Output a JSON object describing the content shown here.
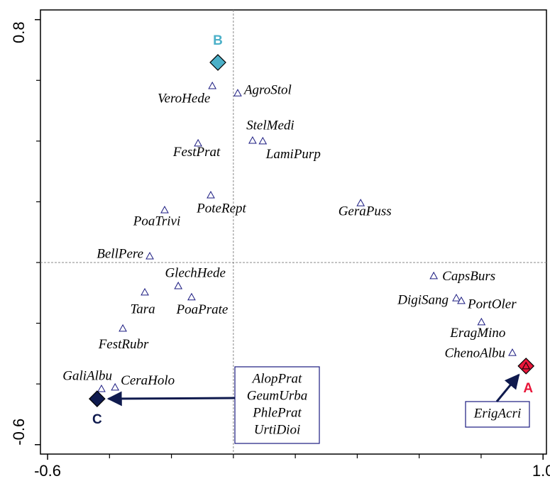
{
  "chart_data": {
    "type": "scatter",
    "xlim": [
      -0.623,
      1.011
    ],
    "ylim": [
      -0.631,
      0.832
    ],
    "xticks": [
      -0.6,
      {
        "value": 1,
        "label": "1.0"
      }
    ],
    "xminor": [
      -0.4,
      -0.2,
      0,
      0.2,
      0.4,
      0.6,
      0.8
    ],
    "yticks": [
      -0.6,
      0.8
    ],
    "yminor": [
      -0.4,
      -0.2,
      0,
      0.2,
      0.4,
      0.6
    ],
    "zero_lines": true,
    "species": {
      "color": "#1a1a80",
      "names": [
        "VeroHede",
        "AgroStol",
        "StelMedi",
        "LamiPurp",
        "FestPrat",
        "PoteRept",
        "PoaTrivi",
        "GeraPuss",
        "BellPere",
        "CapsBurs",
        "DigiSang",
        "PortOler",
        "GlechHede",
        "Tara",
        "PoaPrate",
        "EragMino",
        "FestRubr",
        "ChenoAlbu",
        "CeraHolo",
        "GaliAlbu"
      ],
      "x": [
        -0.068,
        0.014,
        0.062,
        0.095,
        -0.114,
        -0.073,
        -0.222,
        0.411,
        -0.27,
        0.647,
        0.72,
        0.736,
        -0.178,
        -0.286,
        -0.135,
        0.801,
        -0.357,
        0.901,
        -0.382,
        -0.426
      ],
      "y": [
        0.582,
        0.558,
        0.402,
        0.4,
        0.393,
        0.222,
        0.173,
        0.196,
        0.021,
        -0.044,
        -0.117,
        -0.126,
        -0.077,
        -0.098,
        -0.114,
        -0.196,
        -0.217,
        -0.297,
        -0.411,
        -0.416
      ]
    },
    "samples": {
      "names": [
        "A",
        "B",
        "C"
      ],
      "colors": [
        "#e8173a",
        "#4bb0c8",
        "#0f1a4e"
      ],
      "x": [
        0.945,
        -0.05,
        -0.44
      ],
      "y": [
        -0.341,
        0.659,
        -0.449
      ]
    },
    "boxes": [
      {
        "labels": [
          "AlopPrat",
          "GeumUrba",
          "PhlePrat",
          "UrtiDioi"
        ]
      },
      {
        "labels": [
          "ErigAcri"
        ]
      }
    ]
  }
}
